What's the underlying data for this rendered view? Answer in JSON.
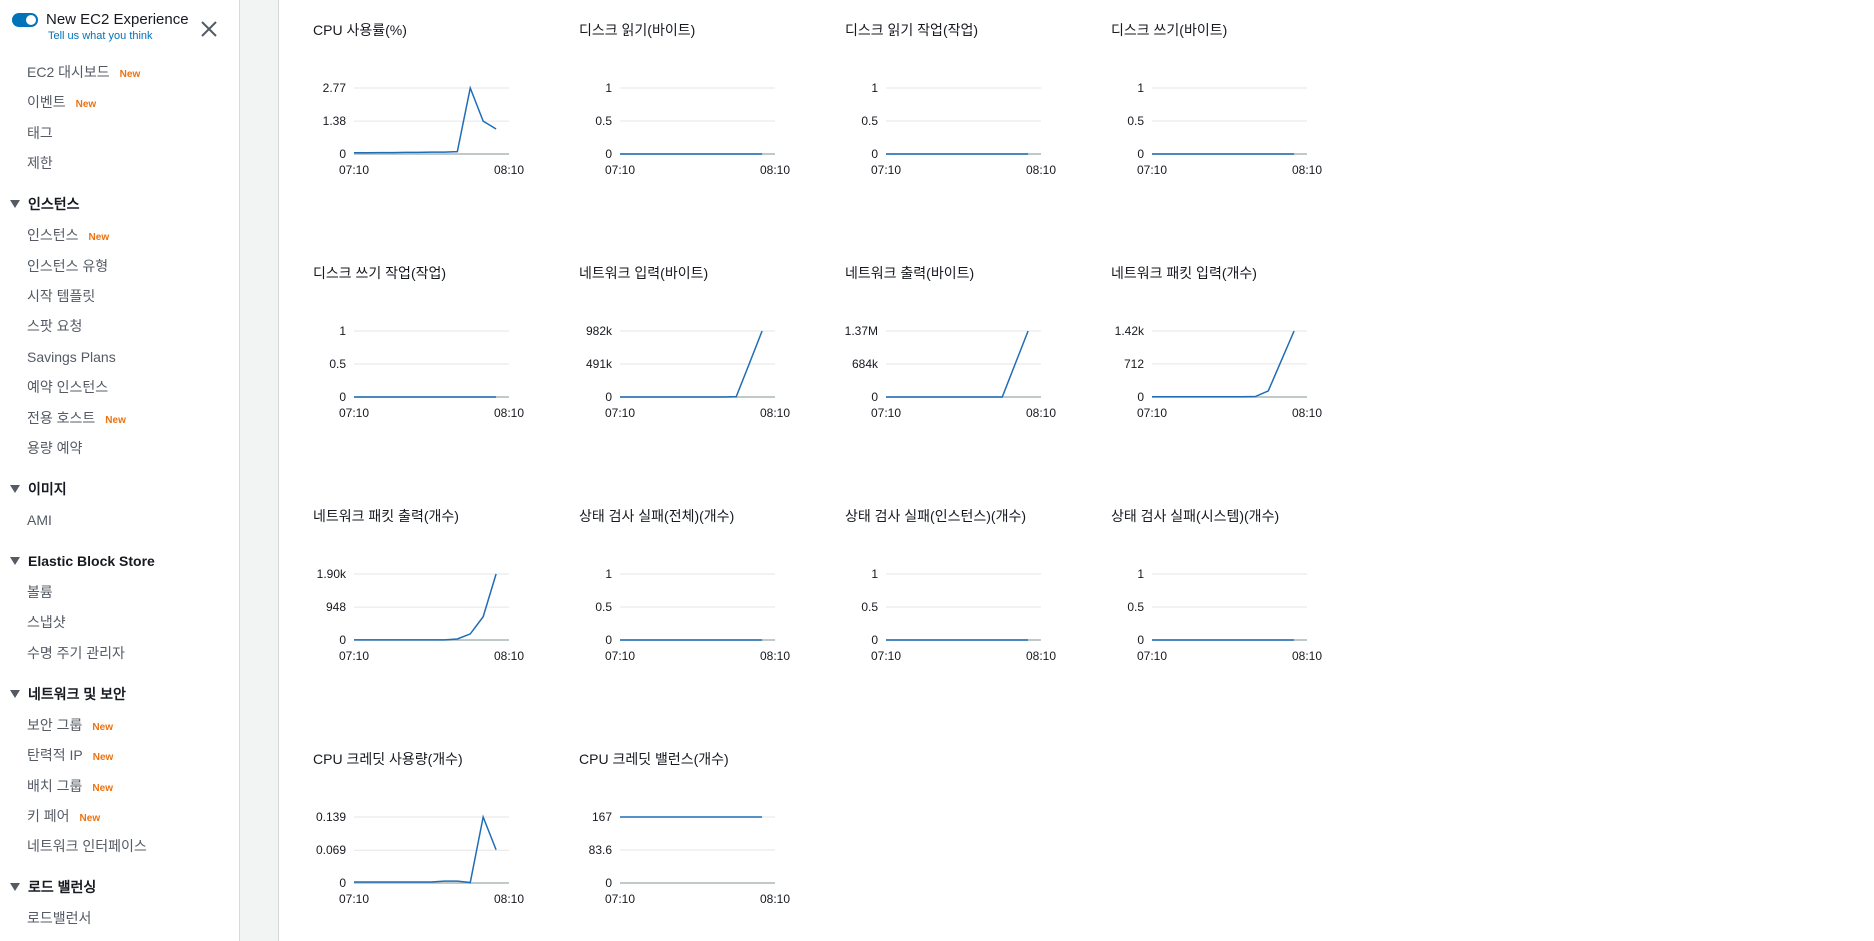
{
  "sidebar": {
    "toggle_label": "New EC2 Experience",
    "feedback_link": "Tell us what you think",
    "sections": [
      {
        "items": [
          {
            "label": "EC2 대시보드",
            "badge": "New"
          },
          {
            "label": "이벤트",
            "badge": "New"
          },
          {
            "label": "태그"
          },
          {
            "label": "제한"
          }
        ]
      },
      {
        "heading": "인스턴스",
        "items": [
          {
            "label": "인스턴스",
            "badge": "New"
          },
          {
            "label": "인스턴스 유형"
          },
          {
            "label": "시작 템플릿"
          },
          {
            "label": "스팟 요청"
          },
          {
            "label": "Savings Plans"
          },
          {
            "label": "예약 인스턴스"
          },
          {
            "label": "전용 호스트",
            "badge": "New"
          },
          {
            "label": "용량 예약"
          }
        ]
      },
      {
        "heading": "이미지",
        "items": [
          {
            "label": "AMI"
          }
        ]
      },
      {
        "heading": "Elastic Block Store",
        "items": [
          {
            "label": "볼륨"
          },
          {
            "label": "스냅샷"
          },
          {
            "label": "수명 주기 관리자"
          }
        ]
      },
      {
        "heading": "네트워크 및 보안",
        "items": [
          {
            "label": "보안 그룹",
            "badge": "New"
          },
          {
            "label": "탄력적 IP",
            "badge": "New"
          },
          {
            "label": "배치 그룹",
            "badge": "New"
          },
          {
            "label": "키 페어",
            "badge": "New"
          },
          {
            "label": "네트워크 인터페이스"
          }
        ]
      },
      {
        "heading": "로드 밸런싱",
        "items": [
          {
            "label": "로드밸런서"
          }
        ]
      }
    ]
  },
  "chart_data": [
    {
      "type": "line",
      "title": "CPU 사용률(%)",
      "color": "#1f6db5",
      "categories": [
        "07:10",
        null,
        null,
        null,
        null,
        null,
        null,
        null,
        null,
        null,
        null,
        null,
        "08:10"
      ],
      "values": [
        0.05,
        0.05,
        0.06,
        0.06,
        0.07,
        0.07,
        0.08,
        0.08,
        0.1,
        2.77,
        1.38,
        1.05,
        null
      ],
      "ylim": [
        0,
        2.77
      ],
      "yticks": [
        0,
        1.38,
        2.77
      ]
    },
    {
      "type": "line",
      "title": "디스크 읽기(바이트)",
      "color": "#1f6db5",
      "categories": [
        "07:10",
        null,
        null,
        null,
        null,
        null,
        null,
        null,
        null,
        null,
        null,
        null,
        "08:10"
      ],
      "values": [
        0,
        0,
        0,
        0,
        0,
        0,
        0,
        0,
        0,
        0,
        0,
        0,
        null
      ],
      "ylim": [
        0,
        1
      ],
      "yticks": [
        0,
        0.5,
        1
      ]
    },
    {
      "type": "line",
      "title": "디스크 읽기 작업(작업)",
      "color": "#1f6db5",
      "categories": [
        "07:10",
        null,
        null,
        null,
        null,
        null,
        null,
        null,
        null,
        null,
        null,
        null,
        "08:10"
      ],
      "values": [
        0,
        0,
        0,
        0,
        0,
        0,
        0,
        0,
        0,
        0,
        0,
        0,
        null
      ],
      "ylim": [
        0,
        1
      ],
      "yticks": [
        0,
        0.5,
        1
      ]
    },
    {
      "type": "line",
      "title": "디스크 쓰기(바이트)",
      "color": "#1f6db5",
      "categories": [
        "07:10",
        null,
        null,
        null,
        null,
        null,
        null,
        null,
        null,
        null,
        null,
        null,
        "08:10"
      ],
      "values": [
        0,
        0,
        0,
        0,
        0,
        0,
        0,
        0,
        0,
        0,
        0,
        0,
        null
      ],
      "ylim": [
        0,
        1
      ],
      "yticks": [
        0,
        0.5,
        1
      ]
    },
    {
      "type": "line",
      "title": "디스크 쓰기 작업(작업)",
      "color": "#1f6db5",
      "categories": [
        "07:10",
        null,
        null,
        null,
        null,
        null,
        null,
        null,
        null,
        null,
        null,
        null,
        "08:10"
      ],
      "values": [
        0,
        0,
        0,
        0,
        0,
        0,
        0,
        0,
        0,
        0,
        0,
        0,
        null
      ],
      "ylim": [
        0,
        1
      ],
      "yticks": [
        0,
        0.5,
        1
      ]
    },
    {
      "type": "line",
      "title": "네트워크 입력(바이트)",
      "color": "#1f6db5",
      "categories": [
        "07:10",
        null,
        null,
        null,
        null,
        null,
        null,
        null,
        null,
        null,
        null,
        null,
        "08:10"
      ],
      "values": [
        0,
        0,
        0,
        0,
        0,
        0,
        0,
        0,
        0,
        5000,
        491000,
        982000,
        null
      ],
      "ylim": [
        0,
        982000
      ],
      "yticks": [
        0,
        {
          "value": 491000,
          "label": "491k"
        },
        {
          "value": 982000,
          "label": "982k"
        }
      ]
    },
    {
      "type": "line",
      "title": "네트워크 출력(바이트)",
      "color": "#1f6db5",
      "categories": [
        "07:10",
        null,
        null,
        null,
        null,
        null,
        null,
        null,
        null,
        null,
        null,
        null,
        "08:10"
      ],
      "values": [
        0,
        0,
        0,
        0,
        0,
        0,
        0,
        0,
        0,
        0,
        685000,
        1370000,
        null
      ],
      "ylim": [
        0,
        1370000
      ],
      "yticks": [
        0,
        {
          "value": 684000,
          "label": "684k"
        },
        {
          "value": 1370000,
          "label": "1.37M"
        }
      ]
    },
    {
      "type": "line",
      "title": "네트워크 패킷 입력(개수)",
      "color": "#1f6db5",
      "categories": [
        "07:10",
        null,
        null,
        null,
        null,
        null,
        null,
        null,
        null,
        null,
        null,
        null,
        "08:10"
      ],
      "values": [
        5,
        5,
        5,
        5,
        5,
        5,
        5,
        5,
        10,
        130,
        775,
        1420,
        null
      ],
      "ylim": [
        0,
        1420
      ],
      "yticks": [
        0,
        712,
        {
          "value": 1420,
          "label": "1.42k"
        }
      ]
    },
    {
      "type": "line",
      "title": "네트워크 패킷 출력(개수)",
      "color": "#1f6db5",
      "categories": [
        "07:10",
        null,
        null,
        null,
        null,
        null,
        null,
        null,
        null,
        null,
        null,
        null,
        "08:10"
      ],
      "values": [
        5,
        5,
        5,
        5,
        5,
        5,
        5,
        5,
        30,
        175,
        670,
        1900,
        null
      ],
      "ylim": [
        0,
        1900
      ],
      "yticks": [
        0,
        948,
        {
          "value": 1900,
          "label": "1.90k"
        }
      ]
    },
    {
      "type": "line",
      "title": "상태 검사 실패(전체)(개수)",
      "color": "#1f6db5",
      "categories": [
        "07:10",
        null,
        null,
        null,
        null,
        null,
        null,
        null,
        null,
        null,
        null,
        null,
        "08:10"
      ],
      "values": [
        0,
        0,
        0,
        0,
        0,
        0,
        0,
        0,
        0,
        0,
        0,
        0,
        null
      ],
      "ylim": [
        0,
        1
      ],
      "yticks": [
        0,
        0.5,
        1
      ]
    },
    {
      "type": "line",
      "title": "상태 검사 실패(인스턴스)(개수)",
      "color": "#1f6db5",
      "categories": [
        "07:10",
        null,
        null,
        null,
        null,
        null,
        null,
        null,
        null,
        null,
        null,
        null,
        "08:10"
      ],
      "values": [
        0,
        0,
        0,
        0,
        0,
        0,
        0,
        0,
        0,
        0,
        0,
        0,
        null
      ],
      "ylim": [
        0,
        1
      ],
      "yticks": [
        0,
        0.5,
        1
      ]
    },
    {
      "type": "line",
      "title": "상태 검사 실패(시스템)(개수)",
      "color": "#1f6db5",
      "categories": [
        "07:10",
        null,
        null,
        null,
        null,
        null,
        null,
        null,
        null,
        null,
        null,
        null,
        "08:10"
      ],
      "values": [
        0,
        0,
        0,
        0,
        0,
        0,
        0,
        0,
        0,
        0,
        0,
        0,
        null
      ],
      "ylim": [
        0,
        1
      ],
      "yticks": [
        0,
        0.5,
        1
      ]
    },
    {
      "type": "line",
      "title": "CPU 크레딧 사용량(개수)",
      "color": "#1f6db5",
      "categories": [
        "07:10",
        null,
        null,
        null,
        null,
        null,
        null,
        null,
        null,
        null,
        null,
        null,
        "08:10"
      ],
      "values": [
        0.002,
        0.002,
        0.002,
        0.002,
        0.002,
        0.002,
        0.002,
        0.004,
        0.004,
        0.001,
        0.139,
        0.07,
        null
      ],
      "ylim": [
        0,
        0.139
      ],
      "yticks": [
        0,
        0.069,
        0.139
      ]
    },
    {
      "type": "line",
      "title": "CPU 크레딧 밸런스(개수)",
      "color": "#1f6db5",
      "categories": [
        "07:10",
        null,
        null,
        null,
        null,
        null,
        null,
        null,
        null,
        null,
        null,
        null,
        "08:10"
      ],
      "values": [
        167,
        167,
        167,
        167,
        167,
        167,
        167,
        167,
        167,
        167,
        167,
        167,
        null
      ],
      "ylim": [
        0,
        167
      ],
      "yticks": [
        0,
        83.6,
        167
      ]
    }
  ]
}
